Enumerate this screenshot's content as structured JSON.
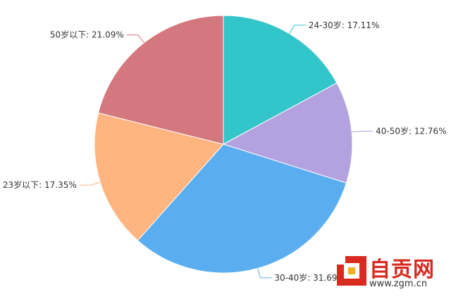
{
  "chart_data": {
    "type": "pie",
    "title": "",
    "slices": [
      {
        "label": "24-30岁",
        "value": 17.11,
        "display": "24-30岁: 17.11%",
        "color": "#32c5c9"
      },
      {
        "label": "40-50岁",
        "value": 12.76,
        "display": "40-50岁: 12.76%",
        "color": "#b4a2e0"
      },
      {
        "label": "30-40岁",
        "value": 31.69,
        "display": "30-40岁: 31.69%",
        "color": "#5aaef0"
      },
      {
        "label": "23岁以下",
        "value": 17.35,
        "display": "23岁以下: 17.35%",
        "color": "#ffb580"
      },
      {
        "label": "50岁以下",
        "value": 21.09,
        "display": "50岁以下: 21.09%",
        "color": "#d4787f"
      }
    ]
  },
  "watermark": {
    "brand": "自贡网",
    "url": "www.zgm.cn",
    "brand_color": "#d82a1f"
  }
}
